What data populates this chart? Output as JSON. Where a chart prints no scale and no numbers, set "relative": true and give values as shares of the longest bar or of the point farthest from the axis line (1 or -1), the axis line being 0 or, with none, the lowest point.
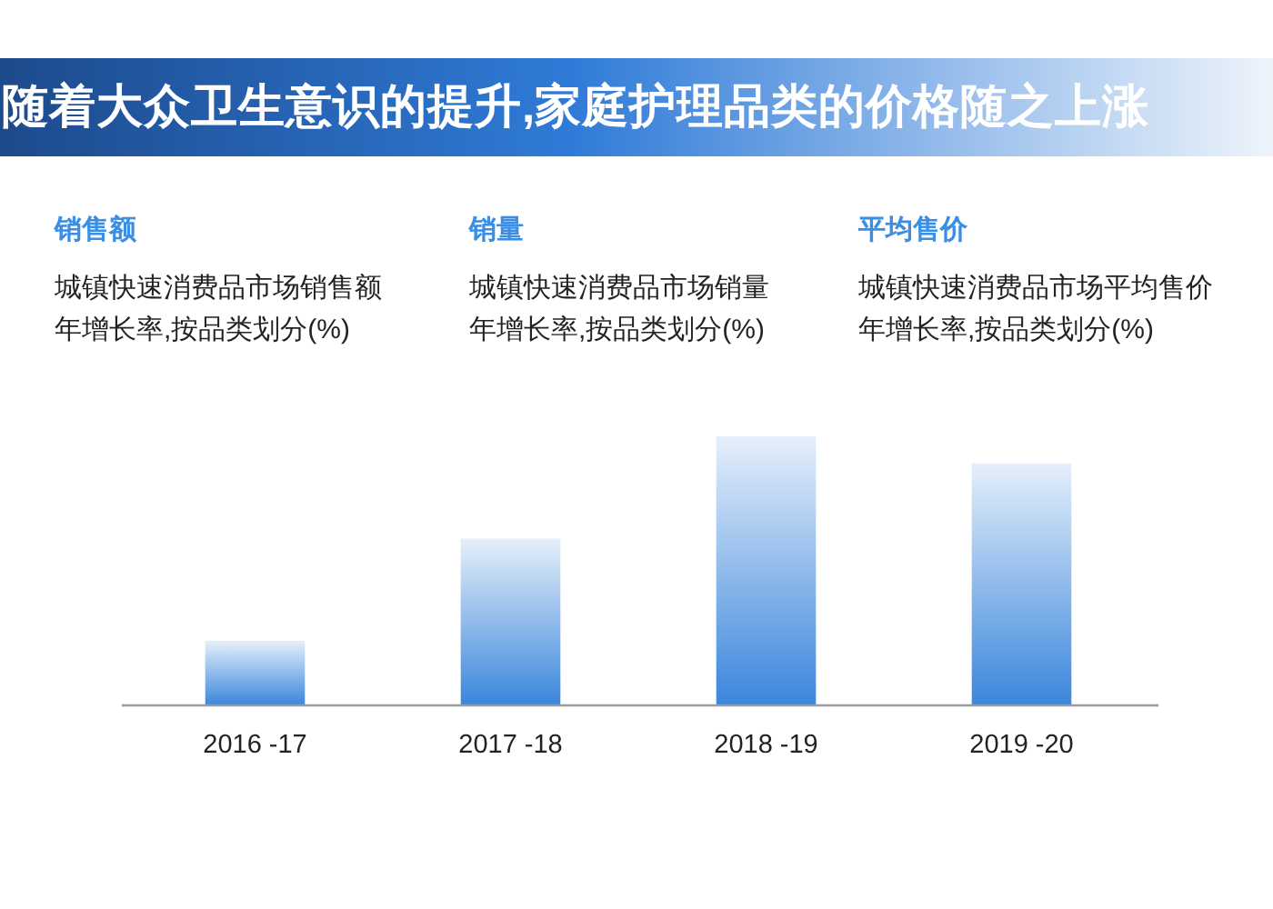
{
  "chart_data": [
    {
      "type": "other",
      "title": "随着大众卫生意识的提升,家庭护理品类的价格随之上涨"
    },
    {
      "type": "other",
      "title": "销售额",
      "subtitle": "城镇快速消费品市场销售额年增长率,按品类划分(%)"
    },
    {
      "type": "other",
      "title": "销量",
      "subtitle": "城镇快速消费品市场销量年增长率,按品类划分(%)"
    },
    {
      "type": "other",
      "title": "平均售价",
      "subtitle": "城镇快速消费品市场平均售价年增长率,按品类划分(%)"
    },
    {
      "type": "bar",
      "categories": [
        "2016 -17",
        "2017 -18",
        "2018 -19",
        "2019 -20"
      ],
      "values": [
        0.24,
        0.62,
        1,
        0.9
      ],
      "color": "#3a86dc",
      "relative": true
    }
  ]
}
